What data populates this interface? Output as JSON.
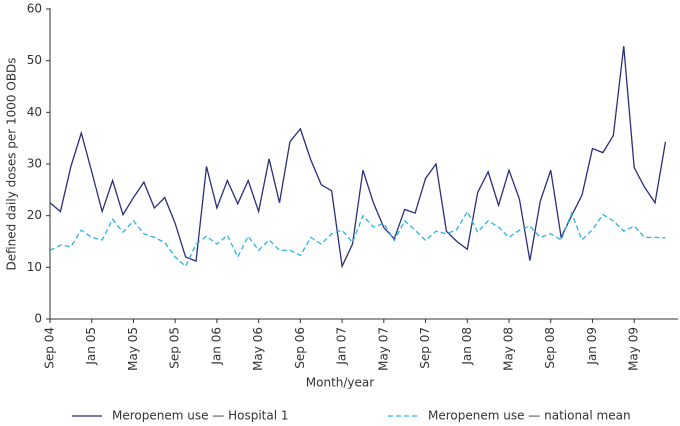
{
  "chart_data": {
    "type": "line",
    "x_label": "Month/year",
    "y_label": "Defined daily doses per 1000 OBDs",
    "categories": [
      "Sep 04",
      null,
      null,
      null,
      "Jan 05",
      null,
      null,
      null,
      "May 05",
      null,
      null,
      null,
      "Sep 05",
      null,
      null,
      null,
      "Jan 06",
      null,
      null,
      null,
      "May 06",
      null,
      null,
      null,
      "Sep 06",
      null,
      null,
      null,
      "Jan 07",
      null,
      null,
      null,
      "May 07",
      null,
      null,
      null,
      "Sep 07",
      null,
      null,
      null,
      "Jan 08",
      null,
      null,
      null,
      "May 08",
      null,
      null,
      null,
      "Sep 08",
      null,
      null,
      null,
      "Jan 09",
      null,
      null,
      null,
      "May 09",
      null,
      null,
      null
    ],
    "series": [
      {
        "name": "Meropenem use — Hospital 1",
        "color": "#2b2f7a",
        "dash": false,
        "values": [
          22.5,
          20.8,
          29.5,
          36,
          28.5,
          20.8,
          26.8,
          20.2,
          23.5,
          26.5,
          21.5,
          23.5,
          18.5,
          12,
          11.2,
          29.5,
          21.5,
          26.8,
          22.3,
          26.8,
          20.8,
          31,
          22.5,
          34.3,
          36.8,
          30.8,
          26,
          24.8,
          10.2,
          14.5,
          28.8,
          22.5,
          17.7,
          15.5,
          21.2,
          20.5,
          27.2,
          30,
          17,
          15,
          13.5,
          24.5,
          28.5,
          22,
          28.8,
          23.2,
          11.3,
          22.8,
          28.8,
          15.8,
          20,
          24,
          33,
          32.2,
          35.5,
          52.8,
          29.3,
          25.5,
          22.5,
          34.3
        ]
      },
      {
        "name": "Meropenem use — national mean",
        "color": "#2bb3e3",
        "dash": true,
        "values": [
          13.3,
          14.3,
          14,
          17.2,
          15.8,
          15.3,
          19.3,
          16.8,
          19,
          16.5,
          15.8,
          14.8,
          12,
          10.2,
          14.5,
          16,
          14.5,
          16.2,
          12,
          16,
          13.3,
          15.3,
          13.3,
          13.3,
          12.3,
          15.8,
          14.5,
          16.5,
          17.2,
          14.8,
          20,
          17.8,
          18.5,
          15.2,
          19,
          17.2,
          15.2,
          17,
          16.5,
          17.3,
          20.8,
          16.8,
          19,
          17.8,
          15.8,
          17.2,
          18,
          15.8,
          16.5,
          15.3,
          20.5,
          15.3,
          17.3,
          20.2,
          19,
          17,
          18,
          15.8,
          15.8,
          15.7
        ]
      }
    ],
    "ylim": [
      0,
      60
    ],
    "yticks": [
      0,
      10,
      20,
      30,
      40,
      50,
      60
    ],
    "grid": false
  }
}
